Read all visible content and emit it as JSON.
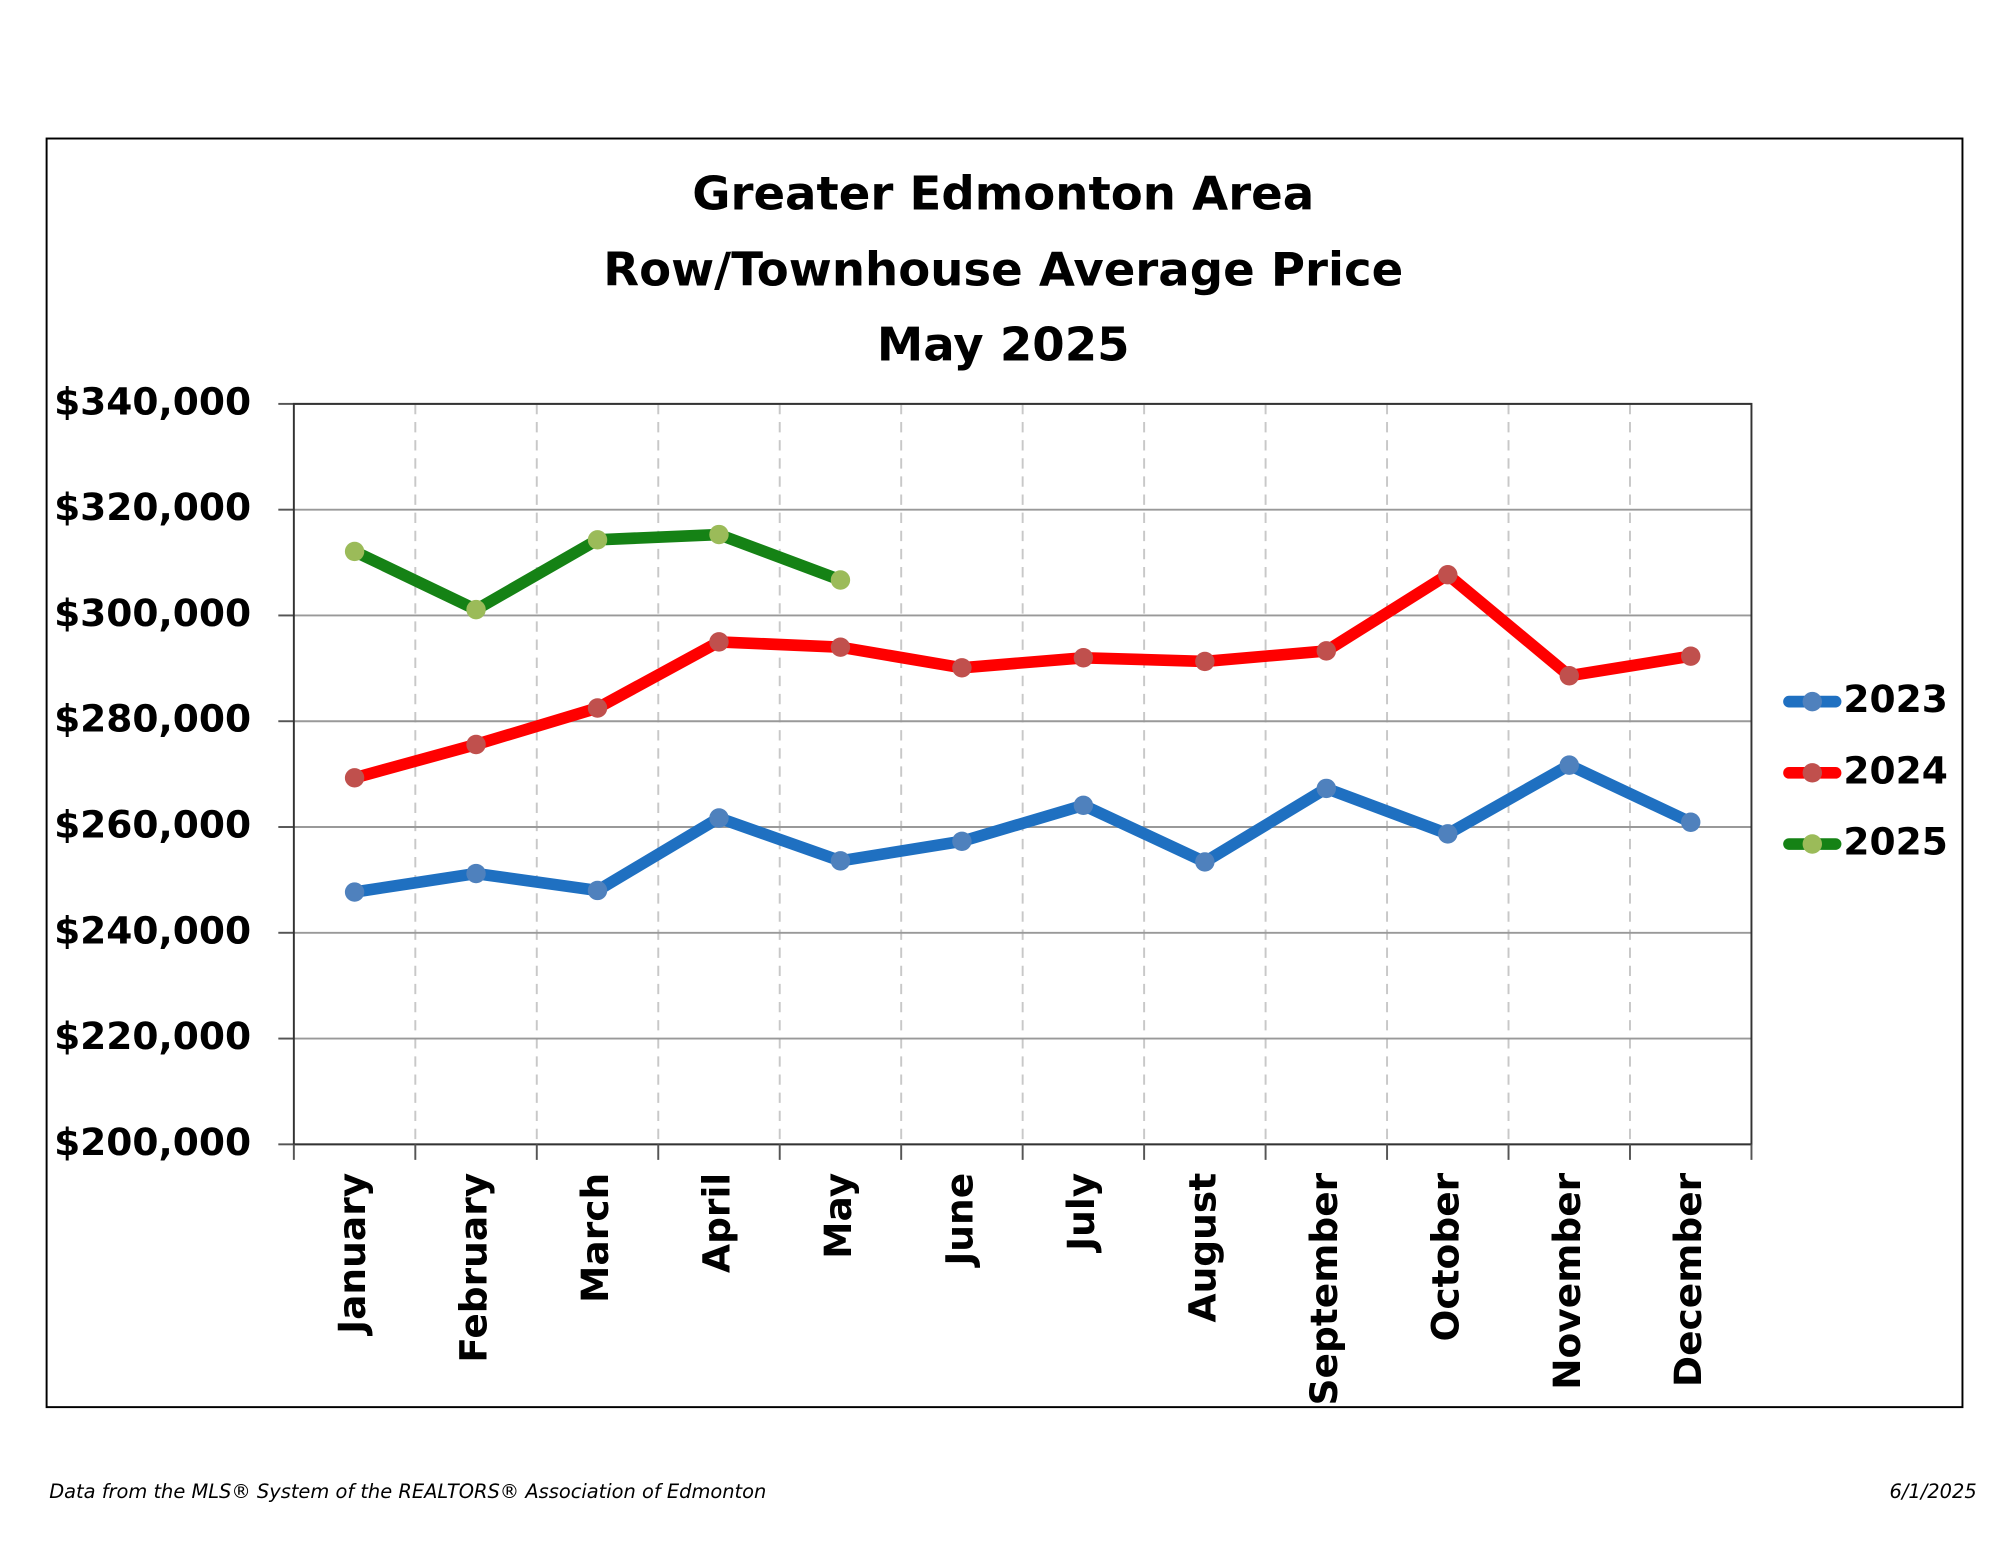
{
  "chart_data": {
    "type": "line",
    "title": [
      "Greater Edmonton Area",
      "Row/Townhouse Average Price",
      "May 2025"
    ],
    "categories": [
      "January",
      "February",
      "March",
      "April",
      "May",
      "June",
      "July",
      "August",
      "September",
      "October",
      "November",
      "December"
    ],
    "series": [
      {
        "name": "2023",
        "color": "#1f70c1",
        "marker_color": "#4f81bd",
        "values": [
          247700,
          251200,
          248000,
          261700,
          253600,
          257300,
          264100,
          253400,
          267300,
          258700,
          271700,
          260900
        ]
      },
      {
        "name": "2024",
        "color": "#ff0000",
        "marker_color": "#c0504d",
        "values": [
          269300,
          275600,
          282500,
          295000,
          294000,
          290100,
          292000,
          291300,
          293300,
          307700,
          288600,
          292300
        ]
      },
      {
        "name": "2025",
        "color": "#158215",
        "marker_color": "#9bbb59",
        "values": [
          312100,
          301100,
          314300,
          315300,
          306700,
          null,
          null,
          null,
          null,
          null,
          null,
          null
        ]
      }
    ],
    "ylim": [
      200000,
      340000
    ],
    "yticks": [
      {
        "value": 200000,
        "label": "$200,000"
      },
      {
        "value": 220000,
        "label": "$220,000"
      },
      {
        "value": 240000,
        "label": "$240,000"
      },
      {
        "value": 260000,
        "label": "$260,000"
      },
      {
        "value": 280000,
        "label": "$280,000"
      },
      {
        "value": 300000,
        "label": "$300,000"
      },
      {
        "value": 320000,
        "label": "$320,000"
      },
      {
        "value": 340000,
        "label": "$340,000"
      }
    ],
    "grid": true,
    "legend": "right"
  },
  "footer": {
    "source": "Data from the MLS® System of the REALTORS® Association of Edmonton",
    "date": "6/1/2025"
  }
}
